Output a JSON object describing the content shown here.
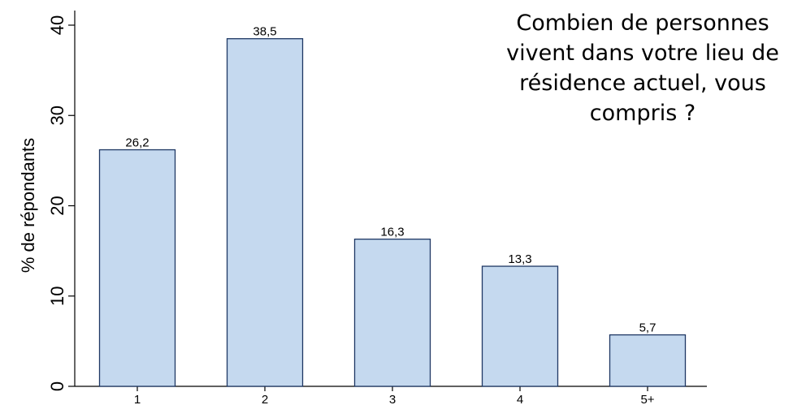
{
  "chart_data": {
    "type": "bar",
    "title": "Combien de personnes vivent dans votre lieu de résidence actuel, vous compris ?",
    "ylabel": "% de répondants",
    "xlabel": "",
    "categories": [
      "1",
      "2",
      "3",
      "4",
      "5+"
    ],
    "values": [
      26.2,
      38.5,
      16.3,
      13.3,
      5.7
    ],
    "value_labels": [
      "26,2",
      "38,5",
      "16,3",
      "13,3",
      "5,7"
    ],
    "ylim": [
      0,
      40
    ],
    "yticks": [
      0,
      10,
      20,
      30,
      40
    ],
    "ytick_labels": [
      "0",
      "10",
      "20",
      "30",
      "40"
    ],
    "grid": false,
    "legend": "none",
    "bar_color": "#c5d9ef",
    "bar_edge_color": "#1f3864"
  }
}
